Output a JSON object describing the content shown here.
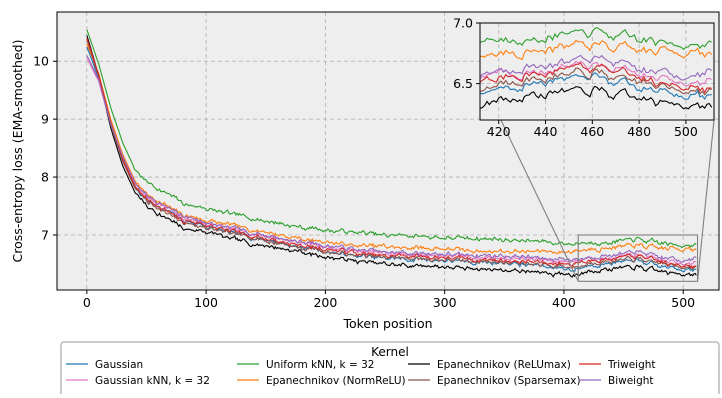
{
  "chart_data": {
    "type": "line",
    "title": "",
    "xlabel": "Token position",
    "ylabel": "Cross-entropy loss (EMA-smoothed)",
    "xlim": [
      -25,
      530
    ],
    "ylim": [
      6.05,
      10.85
    ],
    "xticks": [
      0,
      100,
      200,
      300,
      400,
      500
    ],
    "yticks": [
      7,
      8,
      9,
      10
    ],
    "grid": true,
    "legend": {
      "title": "Kernel",
      "placement": "bottom-center",
      "columns": 4
    },
    "series": [
      {
        "name": "Gaussian",
        "color": "#1f77b4",
        "key": [
          [
            0,
            10.25
          ],
          [
            10,
            9.7
          ],
          [
            20,
            8.9
          ],
          [
            30,
            8.3
          ],
          [
            40,
            7.85
          ],
          [
            50,
            7.6
          ],
          [
            60,
            7.5
          ],
          [
            80,
            7.25
          ],
          [
            100,
            7.15
          ],
          [
            125,
            7.02
          ],
          [
            150,
            6.92
          ],
          [
            175,
            6.8
          ],
          [
            200,
            6.72
          ],
          [
            225,
            6.64
          ],
          [
            250,
            6.6
          ],
          [
            275,
            6.58
          ],
          [
            300,
            6.56
          ],
          [
            325,
            6.53
          ],
          [
            350,
            6.52
          ],
          [
            375,
            6.48
          ],
          [
            400,
            6.42
          ],
          [
            410,
            6.4
          ],
          [
            420,
            6.48
          ],
          [
            430,
            6.5
          ],
          [
            440,
            6.52
          ],
          [
            450,
            6.53
          ],
          [
            460,
            6.56
          ],
          [
            470,
            6.5
          ],
          [
            480,
            6.46
          ],
          [
            490,
            6.43
          ],
          [
            500,
            6.42
          ],
          [
            505,
            6.42
          ],
          [
            510,
            6.4
          ]
        ]
      },
      {
        "name": "Gaussian kNN, k = 32",
        "color": "#e377c2",
        "key": [
          [
            0,
            10.05
          ],
          [
            10,
            9.65
          ],
          [
            20,
            8.9
          ],
          [
            30,
            8.35
          ],
          [
            40,
            7.9
          ],
          [
            50,
            7.65
          ],
          [
            60,
            7.55
          ],
          [
            80,
            7.3
          ],
          [
            100,
            7.2
          ],
          [
            125,
            7.08
          ],
          [
            150,
            6.98
          ],
          [
            175,
            6.88
          ],
          [
            200,
            6.8
          ],
          [
            225,
            6.72
          ],
          [
            250,
            6.68
          ],
          [
            275,
            6.66
          ],
          [
            300,
            6.64
          ],
          [
            325,
            6.62
          ],
          [
            350,
            6.6
          ],
          [
            375,
            6.58
          ],
          [
            400,
            6.54
          ],
          [
            410,
            6.55
          ],
          [
            420,
            6.6
          ],
          [
            430,
            6.6
          ],
          [
            440,
            6.61
          ],
          [
            450,
            6.63
          ],
          [
            460,
            6.65
          ],
          [
            470,
            6.62
          ],
          [
            480,
            6.57
          ],
          [
            490,
            6.54
          ],
          [
            500,
            6.53
          ],
          [
            505,
            6.52
          ],
          [
            510,
            6.52
          ]
        ]
      },
      {
        "name": "Uniform kNN, k = 32",
        "color": "#2ca02c",
        "key": [
          [
            0,
            10.55
          ],
          [
            10,
            9.95
          ],
          [
            20,
            9.2
          ],
          [
            30,
            8.6
          ],
          [
            40,
            8.15
          ],
          [
            50,
            7.92
          ],
          [
            60,
            7.8
          ],
          [
            80,
            7.55
          ],
          [
            100,
            7.45
          ],
          [
            125,
            7.35
          ],
          [
            150,
            7.25
          ],
          [
            175,
            7.15
          ],
          [
            200,
            7.08
          ],
          [
            225,
            7.04
          ],
          [
            250,
            7.0
          ],
          [
            275,
            6.98
          ],
          [
            300,
            6.96
          ],
          [
            325,
            6.94
          ],
          [
            350,
            6.92
          ],
          [
            375,
            6.9
          ],
          [
            400,
            6.85
          ],
          [
            410,
            6.84
          ],
          [
            420,
            6.86
          ],
          [
            430,
            6.87
          ],
          [
            440,
            6.88
          ],
          [
            450,
            6.9
          ],
          [
            460,
            6.92
          ],
          [
            470,
            6.9
          ],
          [
            480,
            6.86
          ],
          [
            490,
            6.84
          ],
          [
            500,
            6.82
          ],
          [
            505,
            6.83
          ],
          [
            510,
            6.84
          ]
        ]
      },
      {
        "name": "Epanechnikov (NormReLU)",
        "color": "#ff7f0e",
        "key": [
          [
            0,
            10.3
          ],
          [
            10,
            9.78
          ],
          [
            20,
            9.0
          ],
          [
            30,
            8.4
          ],
          [
            40,
            7.95
          ],
          [
            50,
            7.7
          ],
          [
            60,
            7.6
          ],
          [
            80,
            7.35
          ],
          [
            100,
            7.25
          ],
          [
            125,
            7.15
          ],
          [
            150,
            7.05
          ],
          [
            175,
            6.95
          ],
          [
            200,
            6.88
          ],
          [
            225,
            6.82
          ],
          [
            250,
            6.8
          ],
          [
            275,
            6.78
          ],
          [
            300,
            6.76
          ],
          [
            325,
            6.74
          ],
          [
            350,
            6.72
          ],
          [
            375,
            6.71
          ],
          [
            400,
            6.7
          ],
          [
            410,
            6.72
          ],
          [
            420,
            6.75
          ],
          [
            430,
            6.76
          ],
          [
            440,
            6.78
          ],
          [
            450,
            6.8
          ],
          [
            460,
            6.82
          ],
          [
            470,
            6.8
          ],
          [
            480,
            6.77
          ],
          [
            490,
            6.76
          ],
          [
            500,
            6.75
          ],
          [
            505,
            6.78
          ],
          [
            510,
            6.74
          ]
        ]
      },
      {
        "name": "Epanechnikov (ReLUmax)",
        "color": "#000000",
        "key": [
          [
            0,
            10.45
          ],
          [
            10,
            9.75
          ],
          [
            20,
            8.85
          ],
          [
            30,
            8.2
          ],
          [
            40,
            7.75
          ],
          [
            50,
            7.5
          ],
          [
            60,
            7.38
          ],
          [
            80,
            7.12
          ],
          [
            100,
            7.05
          ],
          [
            125,
            6.92
          ],
          [
            150,
            6.82
          ],
          [
            175,
            6.72
          ],
          [
            200,
            6.62
          ],
          [
            225,
            6.55
          ],
          [
            250,
            6.5
          ],
          [
            275,
            6.48
          ],
          [
            300,
            6.45
          ],
          [
            325,
            6.42
          ],
          [
            350,
            6.4
          ],
          [
            375,
            6.36
          ],
          [
            400,
            6.32
          ],
          [
            410,
            6.3
          ],
          [
            420,
            6.37
          ],
          [
            430,
            6.4
          ],
          [
            440,
            6.42
          ],
          [
            450,
            6.43
          ],
          [
            460,
            6.45
          ],
          [
            470,
            6.4
          ],
          [
            480,
            6.36
          ],
          [
            490,
            6.33
          ],
          [
            500,
            6.32
          ],
          [
            505,
            6.35
          ],
          [
            510,
            6.3
          ]
        ]
      },
      {
        "name": "Epanechnikov (Sparsemax)",
        "color": "#8c564b",
        "key": [
          [
            0,
            10.38
          ],
          [
            10,
            9.72
          ],
          [
            20,
            8.9
          ],
          [
            30,
            8.28
          ],
          [
            40,
            7.82
          ],
          [
            50,
            7.58
          ],
          [
            60,
            7.46
          ],
          [
            80,
            7.22
          ],
          [
            100,
            7.12
          ],
          [
            125,
            7.0
          ],
          [
            150,
            6.9
          ],
          [
            175,
            6.8
          ],
          [
            200,
            6.72
          ],
          [
            225,
            6.65
          ],
          [
            250,
            6.61
          ],
          [
            275,
            6.59
          ],
          [
            300,
            6.57
          ],
          [
            325,
            6.55
          ],
          [
            350,
            6.53
          ],
          [
            375,
            6.5
          ],
          [
            400,
            6.46
          ],
          [
            410,
            6.44
          ],
          [
            420,
            6.52
          ],
          [
            430,
            6.54
          ],
          [
            440,
            6.55
          ],
          [
            450,
            6.57
          ],
          [
            460,
            6.6
          ],
          [
            470,
            6.55
          ],
          [
            480,
            6.51
          ],
          [
            490,
            6.47
          ],
          [
            500,
            6.45
          ],
          [
            505,
            6.45
          ],
          [
            510,
            6.43
          ]
        ]
      },
      {
        "name": "Triweight",
        "color": "#d62728",
        "key": [
          [
            0,
            10.4
          ],
          [
            10,
            9.76
          ],
          [
            20,
            8.95
          ],
          [
            30,
            8.32
          ],
          [
            40,
            7.86
          ],
          [
            50,
            7.62
          ],
          [
            60,
            7.5
          ],
          [
            80,
            7.26
          ],
          [
            100,
            7.17
          ],
          [
            125,
            7.05
          ],
          [
            150,
            6.94
          ],
          [
            175,
            6.84
          ],
          [
            200,
            6.76
          ],
          [
            225,
            6.69
          ],
          [
            250,
            6.65
          ],
          [
            275,
            6.63
          ],
          [
            300,
            6.61
          ],
          [
            325,
            6.58
          ],
          [
            350,
            6.56
          ],
          [
            375,
            6.53
          ],
          [
            400,
            6.5
          ],
          [
            410,
            6.5
          ],
          [
            420,
            6.56
          ],
          [
            430,
            6.58
          ],
          [
            440,
            6.59
          ],
          [
            450,
            6.61
          ],
          [
            460,
            6.63
          ],
          [
            470,
            6.6
          ],
          [
            480,
            6.55
          ],
          [
            490,
            6.5
          ],
          [
            500,
            6.48
          ],
          [
            505,
            6.48
          ],
          [
            510,
            6.46
          ]
        ]
      },
      {
        "name": "Biweight",
        "color": "#9467bd",
        "key": [
          [
            0,
            10.1
          ],
          [
            10,
            9.68
          ],
          [
            20,
            8.92
          ],
          [
            30,
            8.36
          ],
          [
            40,
            7.92
          ],
          [
            50,
            7.68
          ],
          [
            60,
            7.56
          ],
          [
            80,
            7.32
          ],
          [
            100,
            7.22
          ],
          [
            125,
            7.1
          ],
          [
            150,
            7.0
          ],
          [
            175,
            6.9
          ],
          [
            200,
            6.82
          ],
          [
            225,
            6.75
          ],
          [
            250,
            6.71
          ],
          [
            275,
            6.69
          ],
          [
            300,
            6.67
          ],
          [
            325,
            6.65
          ],
          [
            350,
            6.63
          ],
          [
            375,
            6.61
          ],
          [
            400,
            6.58
          ],
          [
            410,
            6.58
          ],
          [
            420,
            6.62
          ],
          [
            430,
            6.64
          ],
          [
            440,
            6.65
          ],
          [
            450,
            6.67
          ],
          [
            460,
            6.72
          ],
          [
            470,
            6.67
          ],
          [
            480,
            6.62
          ],
          [
            490,
            6.59
          ],
          [
            500,
            6.57
          ],
          [
            505,
            6.58
          ],
          [
            510,
            6.6
          ]
        ]
      }
    ],
    "inset": {
      "xlim": [
        412,
        512
      ],
      "ylim": [
        6.2,
        7.0
      ],
      "xticks": [
        420,
        440,
        460,
        480,
        500
      ],
      "yticks": [
        6.5,
        7.0
      ],
      "ytick_labels": [
        "6.5",
        "7.0"
      ]
    }
  }
}
